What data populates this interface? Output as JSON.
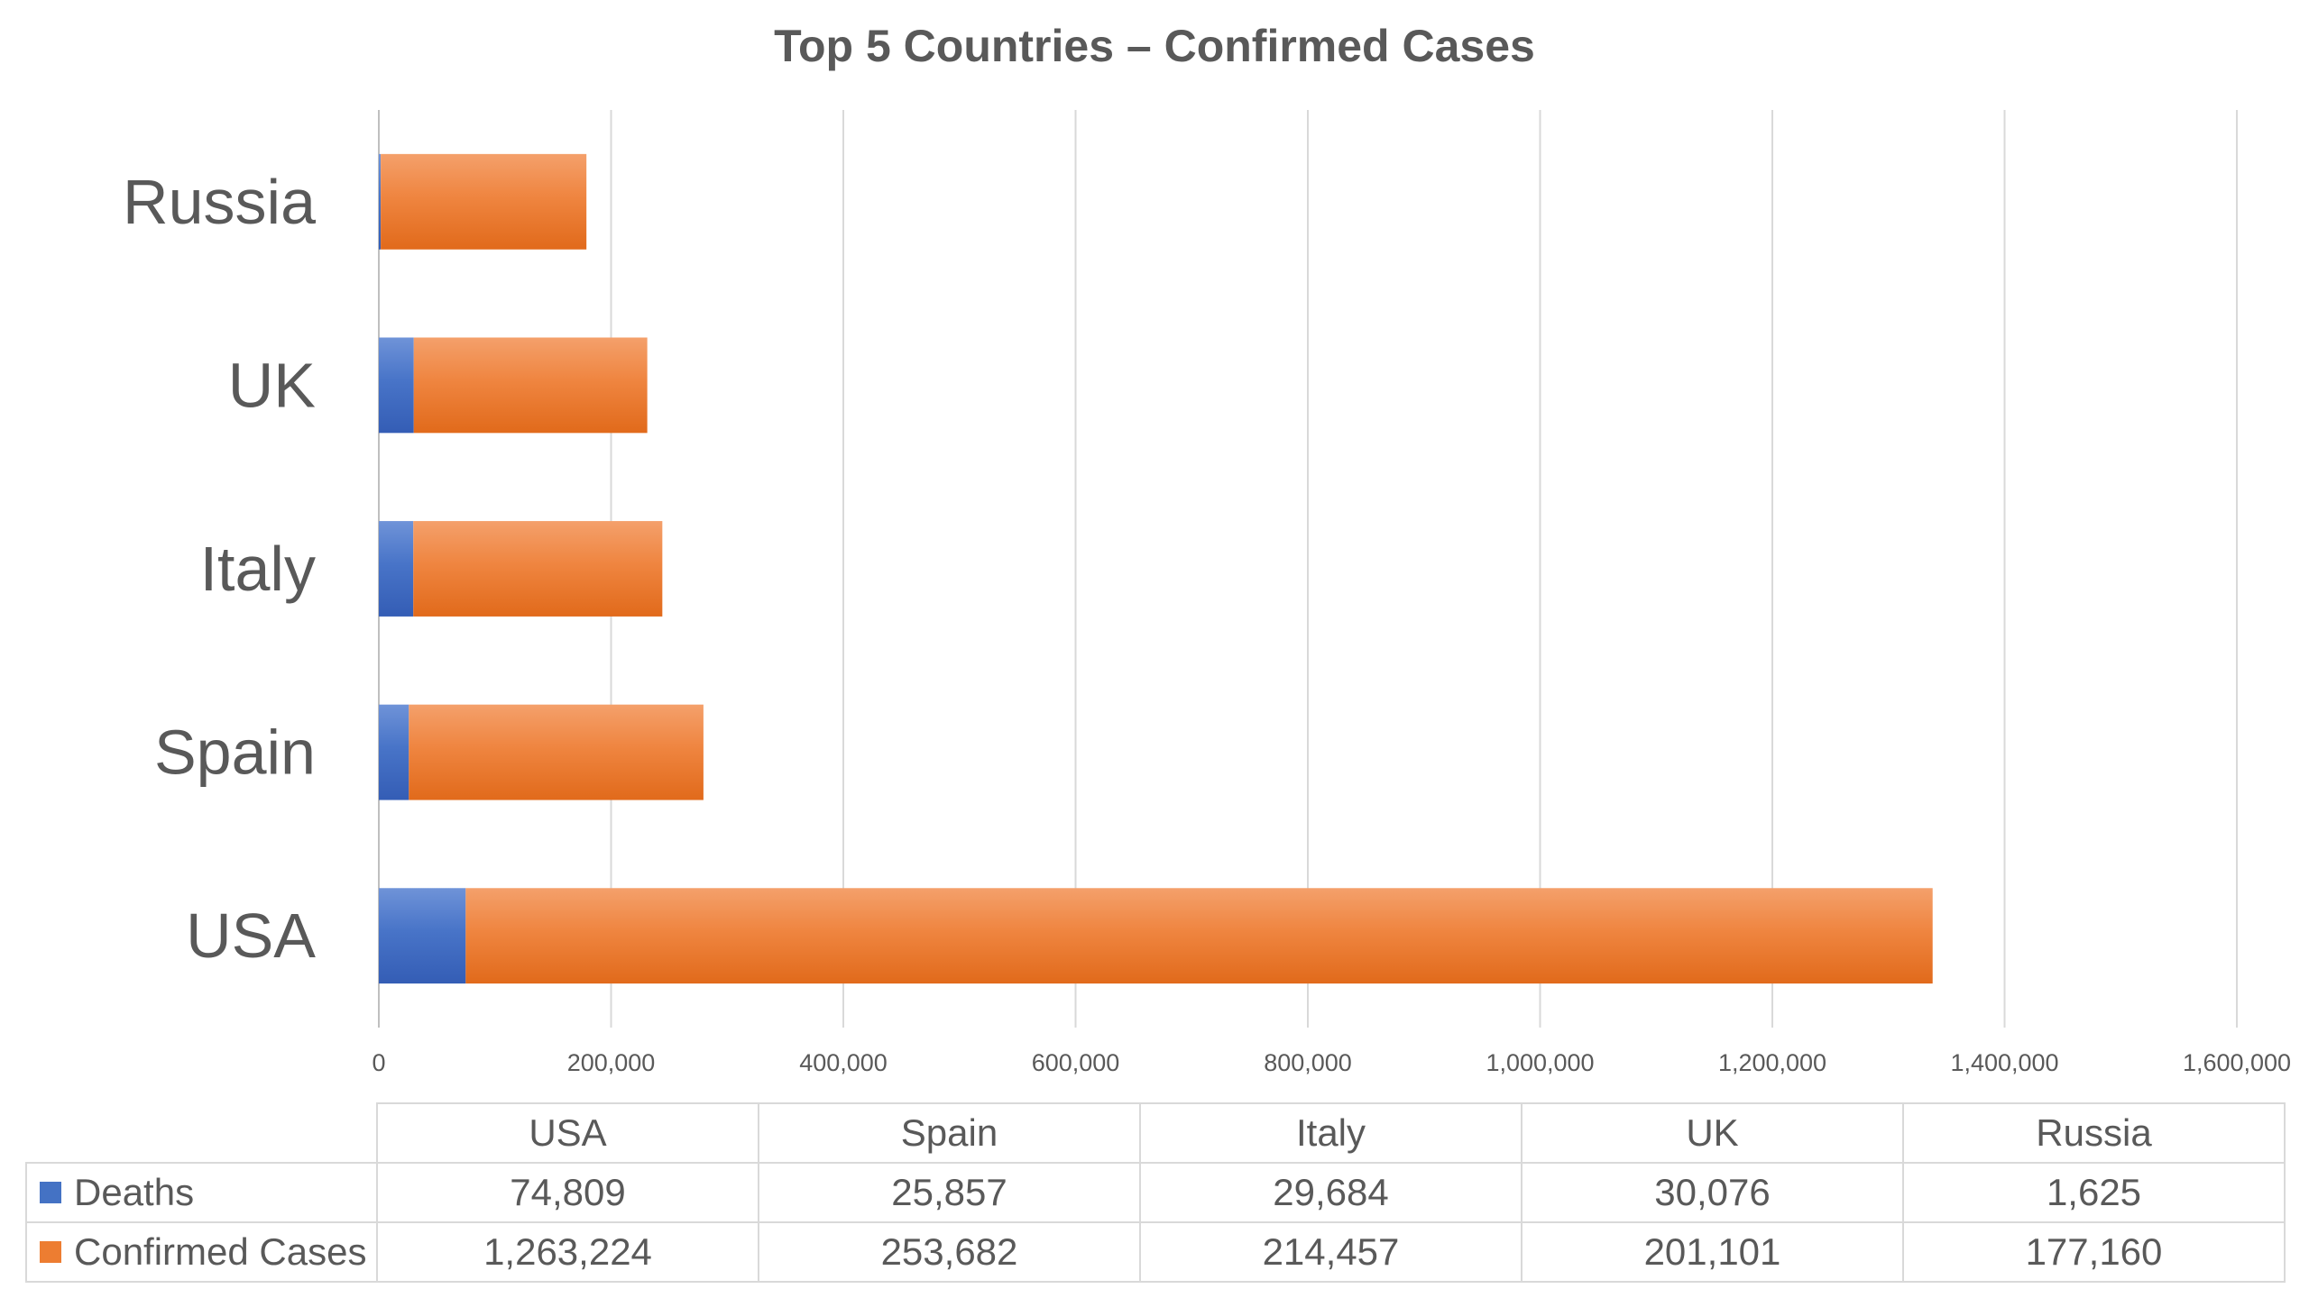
{
  "chart_data": {
    "type": "bar",
    "orientation": "horizontal",
    "stacked": true,
    "title": "Top 5 Countries – Confirmed Cases",
    "categories": [
      "USA",
      "Spain",
      "Italy",
      "UK",
      "Russia"
    ],
    "series": [
      {
        "name": "Deaths",
        "color": "#4472c4",
        "values": [
          74809,
          25857,
          29684,
          30076,
          1625
        ]
      },
      {
        "name": "Confirmed Cases",
        "color": "#ed7d31",
        "values": [
          1263224,
          253682,
          214457,
          201101,
          177160
        ]
      }
    ],
    "xlim": [
      0,
      1600000
    ],
    "x_ticks": [
      "0",
      "200,000",
      "400,000",
      "600,000",
      "800,000",
      "1,000,000",
      "1,200,000",
      "1,400,000",
      "1,600,000"
    ],
    "grid": true,
    "legend": "data-table-below",
    "table": {
      "rows": [
        {
          "label": "Deaths",
          "cells": [
            "74,809",
            "25,857",
            "29,684",
            "30,076",
            "1,625"
          ]
        },
        {
          "label": "Confirmed Cases",
          "cells": [
            "1,263,224",
            "253,682",
            "214,457",
            "201,101",
            "177,160"
          ]
        }
      ]
    }
  }
}
